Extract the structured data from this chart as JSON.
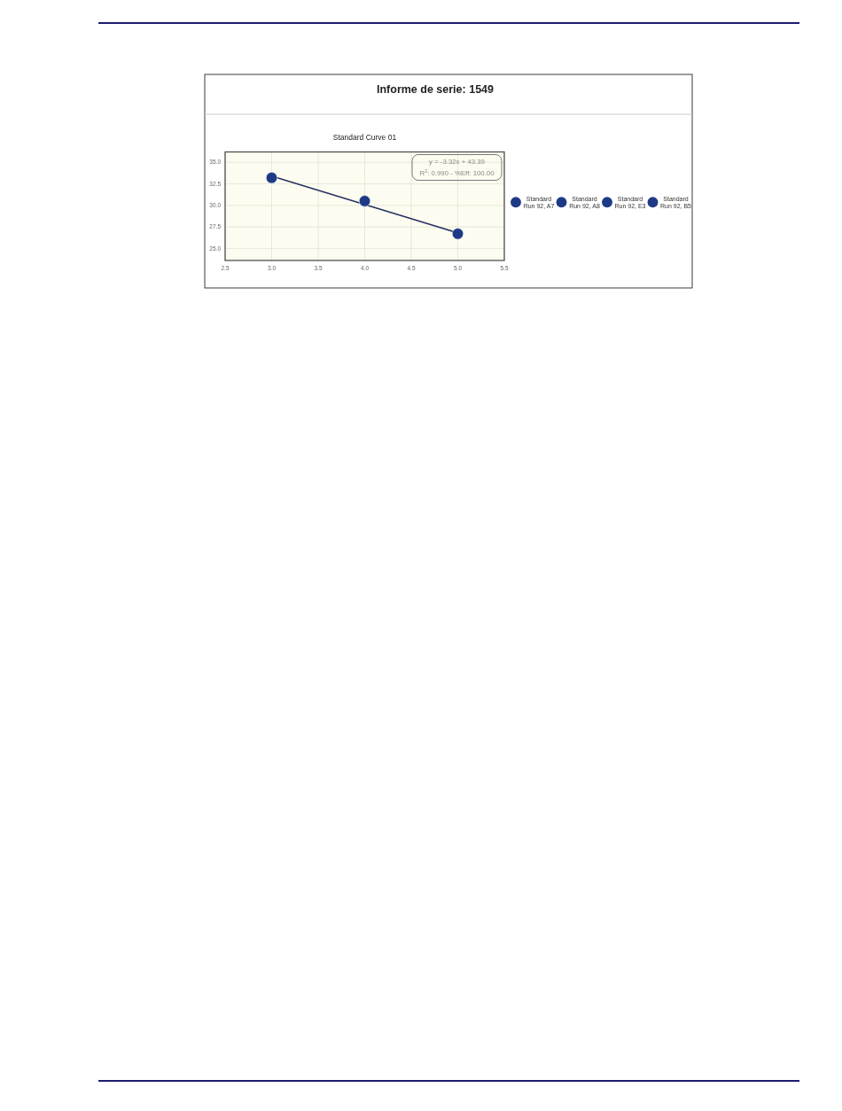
{
  "chart_data": {
    "type": "scatter",
    "title": "Informe de serie: 1549",
    "subtitle": "Standard Curve 01",
    "annotations": [
      "y = -3.32x + 43.39",
      "R$^{2}$: 0.990 - %Eff: 100.00"
    ],
    "xlim": [
      2.5,
      5.5
    ],
    "xticks": [
      {
        "value": 2.5,
        "label": "2.5"
      },
      {
        "value": 3,
        "label": "3.0"
      },
      {
        "value": 3.5,
        "label": "3.5"
      },
      {
        "value": 4,
        "label": "4.0"
      },
      {
        "value": 4.5,
        "label": "4.5"
      },
      {
        "value": 5,
        "label": "5.0"
      },
      {
        "value": 5.5,
        "label": "5.5"
      }
    ],
    "ylim": [
      23.6,
      36.2
    ],
    "yticks": [
      {
        "value": 25,
        "label": "25.0"
      },
      {
        "value": 27.5,
        "label": "27.5"
      },
      {
        "value": 30,
        "label": "30.0"
      },
      {
        "value": 32.5,
        "label": "32.5"
      },
      {
        "value": 35,
        "label": "35.0"
      }
    ],
    "grid": true,
    "legend": "right",
    "series": [
      {
        "type": "line",
        "color": "#283361",
        "x": [
          3,
          5
        ],
        "values": [
          33.4,
          26.8
        ]
      },
      {
        "name": "Standard Run 92, A7",
        "marker": "circle",
        "color": "#1e3a86",
        "values": [
          null
        ]
      },
      {
        "name": "Standard Run 92, A8",
        "marker": "circle",
        "color": "#1e3a86",
        "x": [
          5
        ],
        "values": [
          26.7
        ]
      },
      {
        "name": "Standard Run 92, E3",
        "marker": "circle",
        "color": "#1e3a86",
        "x": [
          4
        ],
        "values": [
          30.5
        ]
      },
      {
        "name": "Standard Run 92, B5",
        "marker": "circle",
        "color": "#1e3a86",
        "x": [
          3
        ],
        "values": [
          33.2
        ]
      }
    ]
  }
}
